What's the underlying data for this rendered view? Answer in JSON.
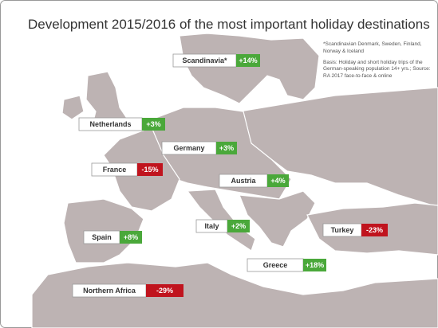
{
  "title": "Development 2015/2016 of the most important holiday destinations",
  "notes": [
    "*Scandinavian Denmark, Sweden, Finland, Norway & Iceland",
    "Basis: Holiday and short holiday trips of the German-speaking population 14+ yrs.; Source: RA 2017 face-to-face & online"
  ],
  "destinations": [
    {
      "name": "Scandinavia*",
      "change": "+14%",
      "color": "#4aa83a"
    },
    {
      "name": "Netherlands",
      "change": "+3%",
      "color": "#4aa83a"
    },
    {
      "name": "Germany",
      "change": "+3%",
      "color": "#4aa83a"
    },
    {
      "name": "France",
      "change": "-15%",
      "color": "#c0141e"
    },
    {
      "name": "Austria",
      "change": "+4%",
      "color": "#4aa83a"
    },
    {
      "name": "Italy",
      "change": "+2%",
      "color": "#4aa83a"
    },
    {
      "name": "Spain",
      "change": "+8%",
      "color": "#4aa83a"
    },
    {
      "name": "Turkey",
      "change": "-23%",
      "color": "#c0141e"
    },
    {
      "name": "Greece",
      "change": "+18%",
      "color": "#4aa83a"
    },
    {
      "name": "Northern Africa",
      "change": "-29%",
      "color": "#c0141e"
    }
  ]
}
